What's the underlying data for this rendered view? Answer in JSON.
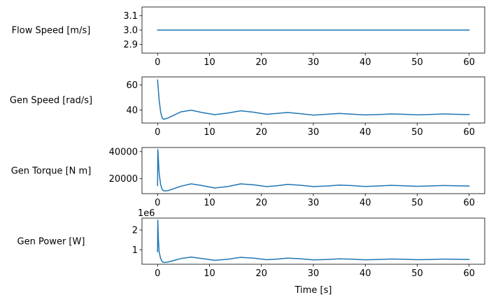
{
  "chart_data": [
    {
      "type": "line",
      "ylabel": "Flow Speed [m/s]",
      "xlabel": "",
      "xlim": [
        -3,
        63
      ],
      "ylim": [
        2.84,
        3.16
      ],
      "xticks": [
        0,
        10,
        20,
        30,
        40,
        50,
        60
      ],
      "yticks": [
        2.9,
        3.0,
        3.1
      ],
      "ytick_labels": [
        "2.9",
        "3.0",
        "3.1"
      ],
      "offset_text": "",
      "color": "#1f77b4",
      "series": [
        {
          "x": [
            0,
            60
          ],
          "y": [
            3.0,
            3.0
          ]
        }
      ]
    },
    {
      "type": "line",
      "ylabel": "Gen Speed [rad/s]",
      "xlabel": "",
      "xlim": [
        -3,
        63
      ],
      "ylim": [
        29.5,
        66.5
      ],
      "xticks": [
        0,
        10,
        20,
        30,
        40,
        50,
        60
      ],
      "yticks": [
        40,
        60
      ],
      "ytick_labels": [
        "40",
        "60"
      ],
      "offset_text": "",
      "color": "#1f77b4",
      "series": [
        {
          "x": [
            0,
            0.3,
            0.6,
            0.9,
            1.2,
            2,
            3,
            4.5,
            6.5,
            8.5,
            11,
            13.5,
            16,
            18.5,
            21,
            23,
            25,
            27.5,
            30,
            32.5,
            35,
            37.5,
            40,
            42.5,
            45,
            47.5,
            50,
            52.5,
            55,
            57.5,
            60
          ],
          "y": [
            64,
            48,
            38,
            33.5,
            32.5,
            33.5,
            35.5,
            38.5,
            39.8,
            38,
            36.2,
            37.5,
            39.3,
            38.2,
            36.5,
            37.2,
            38,
            37,
            35.9,
            36.5,
            37.2,
            36.6,
            36,
            36.3,
            36.8,
            36.5,
            36.1,
            36.4,
            36.8,
            36.5,
            36.3
          ]
        }
      ]
    },
    {
      "type": "line",
      "ylabel": "Gen Torque [N m]",
      "xlabel": "",
      "xlim": [
        -3,
        63
      ],
      "ylim": [
        9000,
        43000
      ],
      "xticks": [
        0,
        10,
        20,
        30,
        40,
        50,
        60
      ],
      "yticks": [
        20000,
        40000
      ],
      "ytick_labels": [
        "20000",
        "40000"
      ],
      "offset_text": "",
      "color": "#1f77b4",
      "series": [
        {
          "x": [
            0,
            0.05,
            0.15,
            0.3,
            0.6,
            0.9,
            1.2,
            2,
            3,
            4.5,
            6.5,
            8.5,
            11,
            13.5,
            16,
            18.5,
            21,
            23,
            25,
            27.5,
            30,
            32.5,
            35,
            37.5,
            40,
            42.5,
            45,
            47.5,
            50,
            52.5,
            55,
            57.5,
            60
          ],
          "y": [
            15000,
            41500,
            35000,
            24000,
            15500,
            12000,
            11000,
            11200,
            12500,
            14500,
            16200,
            15000,
            13200,
            14200,
            16200,
            15500,
            14200,
            14800,
            15800,
            15200,
            14200,
            14600,
            15300,
            14900,
            14300,
            14700,
            15100,
            14800,
            14400,
            14700,
            15000,
            14800,
            14600
          ]
        }
      ]
    },
    {
      "type": "line",
      "ylabel": "Gen Power [W]",
      "xlabel": "Time [s]",
      "xlim": [
        -3,
        63
      ],
      "ylim": [
        270000,
        2600000
      ],
      "xticks": [
        0,
        10,
        20,
        30,
        40,
        50,
        60
      ],
      "yticks": [
        1000000,
        2000000
      ],
      "ytick_labels": [
        "1",
        "2"
      ],
      "offset_text": "1e6",
      "color": "#1f77b4",
      "series": [
        {
          "x": [
            0,
            0.05,
            0.15,
            0.3,
            0.6,
            0.9,
            1.2,
            2,
            3,
            4.5,
            6.5,
            8.5,
            11,
            13.5,
            16,
            18.5,
            21,
            23,
            25,
            27.5,
            30,
            32.5,
            35,
            37.5,
            40,
            42.5,
            45,
            47.5,
            50,
            52.5,
            55,
            57.5,
            60
          ],
          "y": [
            900000,
            2500000,
            1600000,
            900000,
            550000,
            400000,
            360000,
            380000,
            450000,
            560000,
            630000,
            560000,
            470000,
            520000,
            620000,
            580000,
            500000,
            530000,
            580000,
            550000,
            490000,
            510000,
            545000,
            525000,
            495000,
            510000,
            535000,
            520000,
            500000,
            510000,
            530000,
            520000,
            510000
          ]
        }
      ]
    }
  ]
}
